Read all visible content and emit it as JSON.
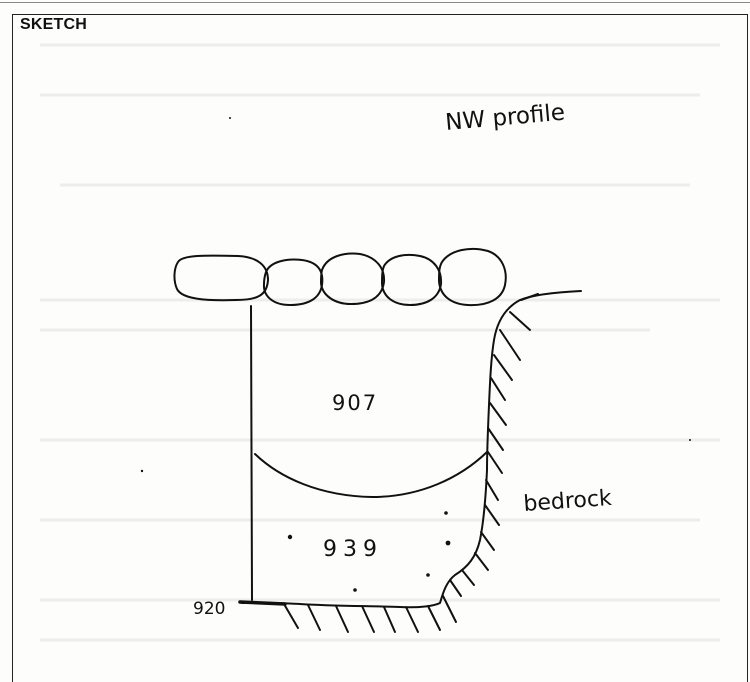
{
  "sheet": {
    "section_title": "SKETCH"
  },
  "sketch": {
    "profile_label": "NW profile",
    "upper_context": "907",
    "lower_context": "939",
    "natural_label": "bedrock",
    "cut_number": "920"
  }
}
